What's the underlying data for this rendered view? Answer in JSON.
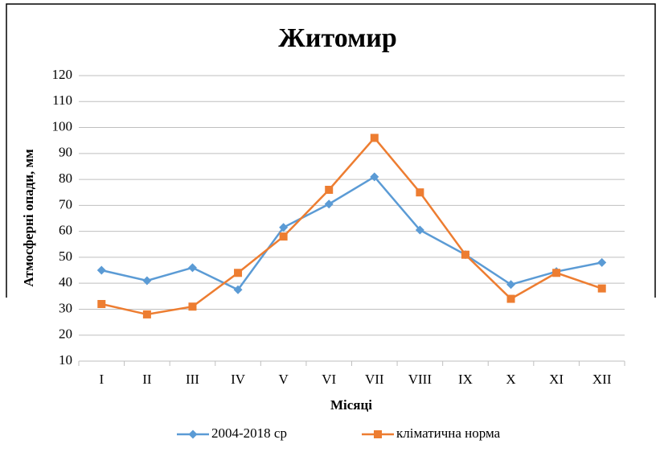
{
  "chart_data": {
    "type": "line",
    "title": "Житомир",
    "x_label": "Місяці",
    "y_label": "Атмосферні опади, мм",
    "categories": [
      "I",
      "II",
      "III",
      "IV",
      "V",
      "VI",
      "VII",
      "VIII",
      "IX",
      "X",
      "XI",
      "XII"
    ],
    "series": [
      {
        "name": "2004-2018 ср",
        "color": "#5b9bd5",
        "marker": "diamond",
        "values": [
          45,
          41,
          46,
          37.5,
          61.5,
          70.5,
          81,
          60.5,
          51,
          39.5,
          44.5,
          48
        ]
      },
      {
        "name": "кліматична норма",
        "color": "#ed7d31",
        "marker": "square",
        "values": [
          32,
          28,
          31,
          44,
          58,
          76,
          96,
          75,
          51,
          34,
          44,
          38
        ]
      }
    ],
    "ylim": [
      10,
      120
    ],
    "yticks": [
      10,
      20,
      30,
      40,
      50,
      60,
      70,
      80,
      90,
      100,
      110,
      120
    ],
    "grid": true,
    "legend": "bottom"
  }
}
